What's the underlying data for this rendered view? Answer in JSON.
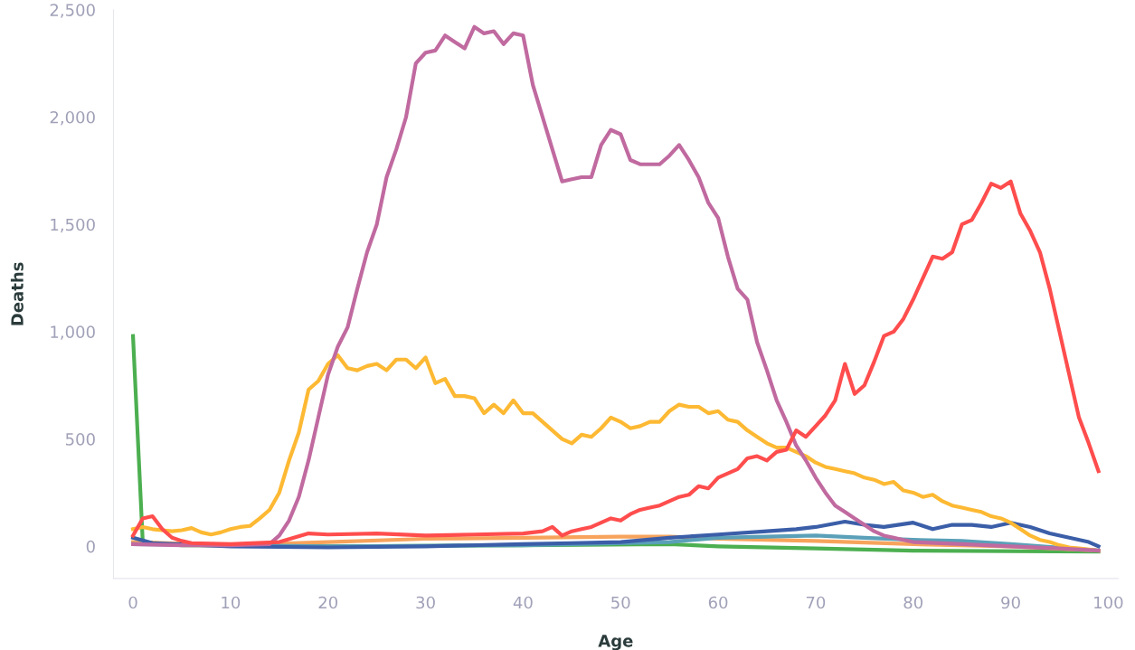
{
  "chart_data": {
    "type": "line",
    "xlabel": "Age",
    "ylabel": "Deaths",
    "xlim": [
      -2,
      101
    ],
    "ylim": [
      -150,
      2500
    ],
    "xticks": [
      0,
      10,
      20,
      30,
      40,
      50,
      60,
      70,
      80,
      90,
      100
    ],
    "yticks": [
      0,
      500,
      {
        "value": 1000,
        "label": "1,000"
      },
      {
        "value": 1500,
        "label": "1,500"
      },
      {
        "value": 2000,
        "label": "2,000"
      },
      {
        "value": 2500,
        "label": "2,500"
      }
    ],
    "grid": false,
    "legend": false,
    "marker": "none",
    "line_style": "solid",
    "series": [
      {
        "color": "#4caf50",
        "x": [
          0,
          1,
          5,
          20,
          40,
          55,
          60,
          70,
          80,
          99
        ],
        "values": [
          980,
          20,
          5,
          0,
          5,
          10,
          0,
          -10,
          -20,
          -25
        ]
      },
      {
        "color": "#f7a35c",
        "x": [
          0,
          10,
          20,
          30,
          40,
          50,
          55,
          60,
          70,
          80,
          90,
          99
        ],
        "values": [
          20,
          5,
          20,
          35,
          40,
          45,
          45,
          35,
          25,
          10,
          0,
          -20
        ]
      },
      {
        "color": "#5aa0b8",
        "x": [
          0,
          20,
          40,
          55,
          60,
          65,
          70,
          75,
          80,
          85,
          90,
          99
        ],
        "values": [
          10,
          0,
          5,
          20,
          40,
          45,
          50,
          40,
          30,
          25,
          10,
          -20
        ]
      },
      {
        "color": "#3b5ea8",
        "x": [
          0,
          2,
          10,
          20,
          30,
          40,
          45,
          50,
          55,
          60,
          65,
          68,
          70,
          73,
          75,
          77,
          80,
          82,
          84,
          86,
          88,
          90,
          92,
          94,
          96,
          98,
          99
        ],
        "values": [
          40,
          15,
          0,
          -5,
          0,
          10,
          15,
          20,
          40,
          55,
          70,
          80,
          90,
          115,
          100,
          90,
          110,
          80,
          100,
          100,
          90,
          110,
          90,
          60,
          40,
          20,
          0
        ]
      },
      {
        "color": "#fdb933",
        "x": [
          0,
          1,
          2,
          3,
          4,
          5,
          6,
          7,
          8,
          9,
          10,
          11,
          12,
          13,
          14,
          15,
          16,
          17,
          18,
          19,
          20,
          21,
          22,
          23,
          24,
          25,
          26,
          27,
          28,
          29,
          30,
          31,
          32,
          33,
          34,
          35,
          36,
          37,
          38,
          39,
          40,
          41,
          42,
          43,
          44,
          45,
          46,
          47,
          48,
          49,
          50,
          51,
          52,
          53,
          54,
          55,
          56,
          57,
          58,
          59,
          60,
          61,
          62,
          63,
          64,
          65,
          66,
          67,
          68,
          69,
          70,
          71,
          72,
          73,
          74,
          75,
          76,
          77,
          78,
          79,
          80,
          81,
          82,
          83,
          84,
          85,
          86,
          87,
          88,
          89,
          90,
          91,
          92,
          93,
          94,
          95,
          96,
          97,
          98,
          99
        ],
        "values": [
          80,
          90,
          80,
          75,
          70,
          75,
          85,
          65,
          55,
          65,
          80,
          90,
          95,
          130,
          170,
          250,
          400,
          530,
          730,
          770,
          850,
          890,
          830,
          820,
          840,
          850,
          820,
          870,
          870,
          830,
          880,
          760,
          780,
          700,
          700,
          690,
          620,
          660,
          620,
          680,
          620,
          620,
          580,
          540,
          500,
          480,
          520,
          510,
          550,
          600,
          580,
          550,
          560,
          580,
          580,
          630,
          660,
          650,
          650,
          620,
          630,
          590,
          580,
          540,
          510,
          480,
          460,
          460,
          440,
          420,
          390,
          370,
          360,
          350,
          340,
          320,
          310,
          290,
          300,
          260,
          250,
          230,
          240,
          210,
          190,
          180,
          170,
          160,
          140,
          130,
          110,
          80,
          50,
          30,
          20,
          5,
          -5,
          -10,
          -15,
          -20
        ]
      },
      {
        "color": "#c06aa0",
        "x": [
          0,
          5,
          10,
          14,
          15,
          16,
          17,
          18,
          19,
          20,
          21,
          22,
          23,
          24,
          25,
          26,
          27,
          28,
          29,
          30,
          31,
          32,
          33,
          34,
          35,
          36,
          37,
          38,
          39,
          40,
          41,
          42,
          43,
          44,
          45,
          46,
          47,
          48,
          49,
          50,
          51,
          52,
          53,
          54,
          55,
          56,
          57,
          58,
          59,
          60,
          61,
          62,
          63,
          64,
          65,
          66,
          67,
          68,
          69,
          70,
          71,
          72,
          73,
          74,
          75,
          76,
          77,
          78,
          79,
          80,
          85,
          90,
          95,
          99
        ],
        "values": [
          10,
          5,
          5,
          10,
          50,
          120,
          230,
          400,
          600,
          800,
          930,
          1020,
          1200,
          1370,
          1500,
          1720,
          1850,
          2000,
          2250,
          2300,
          2310,
          2380,
          2350,
          2320,
          2420,
          2390,
          2400,
          2340,
          2390,
          2380,
          2150,
          2000,
          1850,
          1700,
          1710,
          1720,
          1720,
          1870,
          1940,
          1920,
          1800,
          1780,
          1780,
          1780,
          1820,
          1870,
          1800,
          1720,
          1600,
          1530,
          1350,
          1200,
          1150,
          950,
          820,
          680,
          580,
          470,
          400,
          320,
          250,
          190,
          160,
          130,
          100,
          70,
          50,
          40,
          30,
          20,
          10,
          0,
          -10,
          -20
        ]
      },
      {
        "color": "#ff4d4d",
        "x": [
          0,
          1,
          2,
          3,
          4,
          5,
          6,
          10,
          15,
          18,
          20,
          25,
          30,
          35,
          40,
          42,
          43,
          44,
          45,
          46,
          47,
          48,
          49,
          50,
          51,
          52,
          53,
          54,
          55,
          56,
          57,
          58,
          59,
          60,
          61,
          62,
          63,
          64,
          65,
          66,
          67,
          68,
          69,
          70,
          71,
          72,
          73,
          74,
          75,
          76,
          77,
          78,
          79,
          80,
          81,
          82,
          83,
          84,
          85,
          86,
          87,
          88,
          89,
          90,
          91,
          92,
          93,
          94,
          95,
          96,
          97,
          98,
          99
        ],
        "values": [
          50,
          130,
          140,
          80,
          40,
          25,
          15,
          10,
          20,
          60,
          55,
          60,
          50,
          55,
          60,
          70,
          90,
          50,
          70,
          80,
          90,
          110,
          130,
          120,
          150,
          170,
          180,
          190,
          210,
          230,
          240,
          280,
          270,
          320,
          340,
          360,
          410,
          420,
          400,
          440,
          450,
          540,
          510,
          560,
          610,
          680,
          850,
          710,
          750,
          860,
          980,
          1000,
          1060,
          1150,
          1250,
          1350,
          1340,
          1370,
          1500,
          1520,
          1600,
          1690,
          1670,
          1700,
          1550,
          1470,
          1370,
          1200,
          1000,
          800,
          600,
          480,
          350
        ]
      }
    ]
  }
}
